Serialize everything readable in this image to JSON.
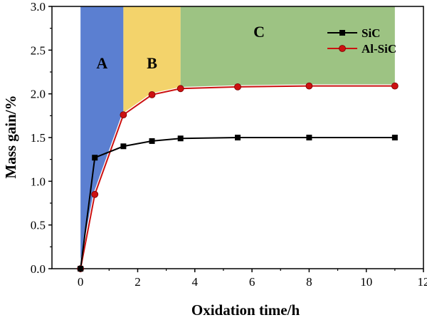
{
  "chart_data": {
    "type": "line",
    "xlabel": "Oxidation time/h",
    "ylabel": "Mass gain/%",
    "xlim": [
      -1,
      12
    ],
    "ylim": [
      0,
      3.0
    ],
    "xticks": [
      0,
      2,
      4,
      6,
      8,
      10,
      12
    ],
    "yticks": [
      0.0,
      0.5,
      1.0,
      1.5,
      2.0,
      2.5,
      3.0
    ],
    "xtick_labels": [
      "0",
      "2",
      "4",
      "6",
      "8",
      "10",
      "12"
    ],
    "ytick_labels": [
      "0.0",
      "0.5",
      "1.0",
      "1.5",
      "2.0",
      "2.5",
      "3.0"
    ],
    "grid": false,
    "legend_position": "top-right",
    "series": [
      {
        "name": "SiC",
        "color": "#000000",
        "marker": "square",
        "x": [
          0,
          0.5,
          1.5,
          2.5,
          3.5,
          5.5,
          8,
          11
        ],
        "y": [
          0.0,
          1.27,
          1.4,
          1.46,
          1.49,
          1.5,
          1.5,
          1.5
        ]
      },
      {
        "name": "Al-SiC",
        "color": "#cc1111",
        "marker": "circle",
        "x": [
          0,
          0.5,
          1.5,
          2.5,
          3.5,
          5.5,
          8,
          11
        ],
        "y": [
          0.0,
          0.85,
          1.76,
          1.99,
          2.06,
          2.08,
          2.09,
          2.09
        ]
      }
    ],
    "regions": [
      {
        "label": "A",
        "color": "#5b7fd1",
        "x_start": 0,
        "x_end": 1.5
      },
      {
        "label": "B",
        "color": "#f3d36b",
        "x_start": 1.5,
        "x_end": 3.5
      },
      {
        "label": "C",
        "color": "#9dc383",
        "x_start": 3.5,
        "x_end": 11
      }
    ]
  }
}
